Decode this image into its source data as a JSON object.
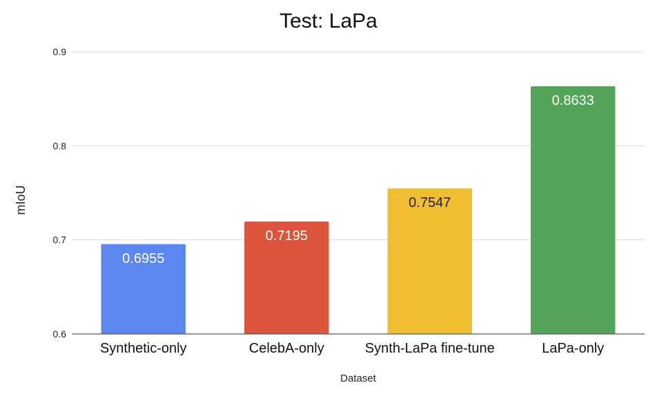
{
  "chart_data": {
    "type": "bar",
    "title": "Test: LaPa",
    "xlabel": "Dataset",
    "ylabel": "mIoU",
    "ylim": [
      0.6,
      0.9
    ],
    "yticks": [
      "0.6",
      "0.7",
      "0.8",
      "0.9"
    ],
    "ytick_values": [
      0.6,
      0.7,
      0.8,
      0.9
    ],
    "grid": true,
    "categories": [
      "Synthetic-only",
      "CelebA-only",
      "Synth-LaPa fine-tune",
      "LaPa-only"
    ],
    "values": [
      0.6955,
      0.7195,
      0.7547,
      0.8633
    ],
    "data_labels": [
      "0.6955",
      "0.7195",
      "0.7547",
      "0.8633"
    ],
    "colors": [
      "#5b87ef",
      "#dc543c",
      "#f0be33",
      "#54a55a"
    ],
    "label_colors": [
      "#ffffff",
      "#ffffff",
      "#222222",
      "#ffffff"
    ]
  }
}
